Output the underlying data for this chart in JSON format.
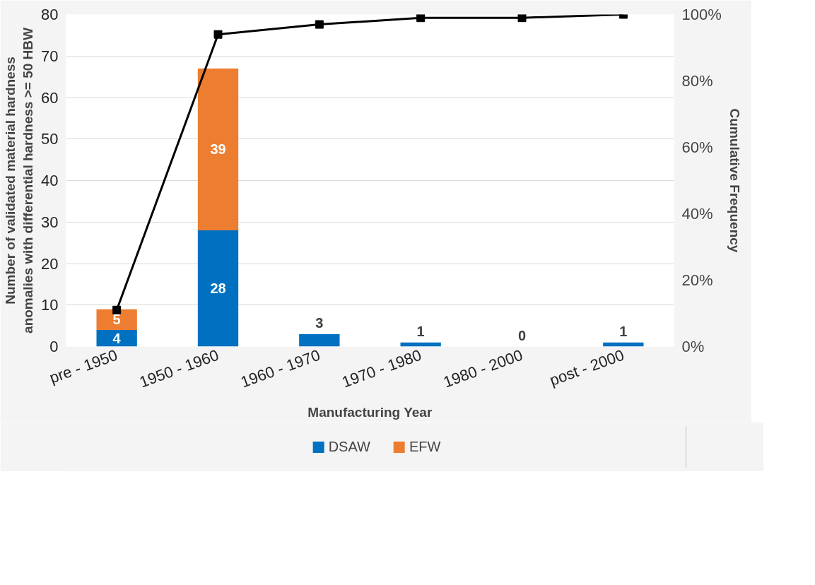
{
  "chart_data": {
    "type": "bar",
    "stacked": true,
    "xlabel": "Manufacturing Year",
    "ylabel": "Number of validated material hardness anomalies with differential hardness >= 50 HBW",
    "y2label": "Cumulative Frequency",
    "categories": [
      "pre - 1950",
      "1950 - 1960",
      "1960 - 1970",
      "1970 - 1980",
      "1980 - 2000",
      "post - 2000"
    ],
    "series": [
      {
        "name": "DSAW",
        "color": "#0070c0",
        "values": [
          4,
          28,
          3,
          1,
          0,
          1
        ],
        "value_labels": [
          "4",
          "28",
          "3",
          "1",
          "0",
          "1"
        ]
      },
      {
        "name": "EFW",
        "color": "#ed7d31",
        "values": [
          5,
          39,
          0,
          0,
          0,
          0
        ],
        "value_labels": [
          "5",
          "39",
          null,
          null,
          null,
          null
        ]
      },
      {
        "type": "line",
        "axis": "y2",
        "color": "#000000",
        "marker": "square",
        "line_style": "solid",
        "values": [
          11,
          94,
          97,
          99,
          99,
          100
        ]
      }
    ],
    "ylim": [
      0,
      80
    ],
    "yticks": [
      0,
      10,
      20,
      30,
      40,
      50,
      60,
      70,
      80
    ],
    "y2lim": [
      0,
      100
    ],
    "y2ticks": [
      {
        "value": 0,
        "label": "0%"
      },
      {
        "value": 20,
        "label": "20%"
      },
      {
        "value": 40,
        "label": "40%"
      },
      {
        "value": 60,
        "label": "60%"
      },
      {
        "value": 80,
        "label": "80%"
      },
      {
        "value": 100,
        "label": "100%"
      }
    ],
    "grid": "y",
    "legend": "bottom"
  }
}
